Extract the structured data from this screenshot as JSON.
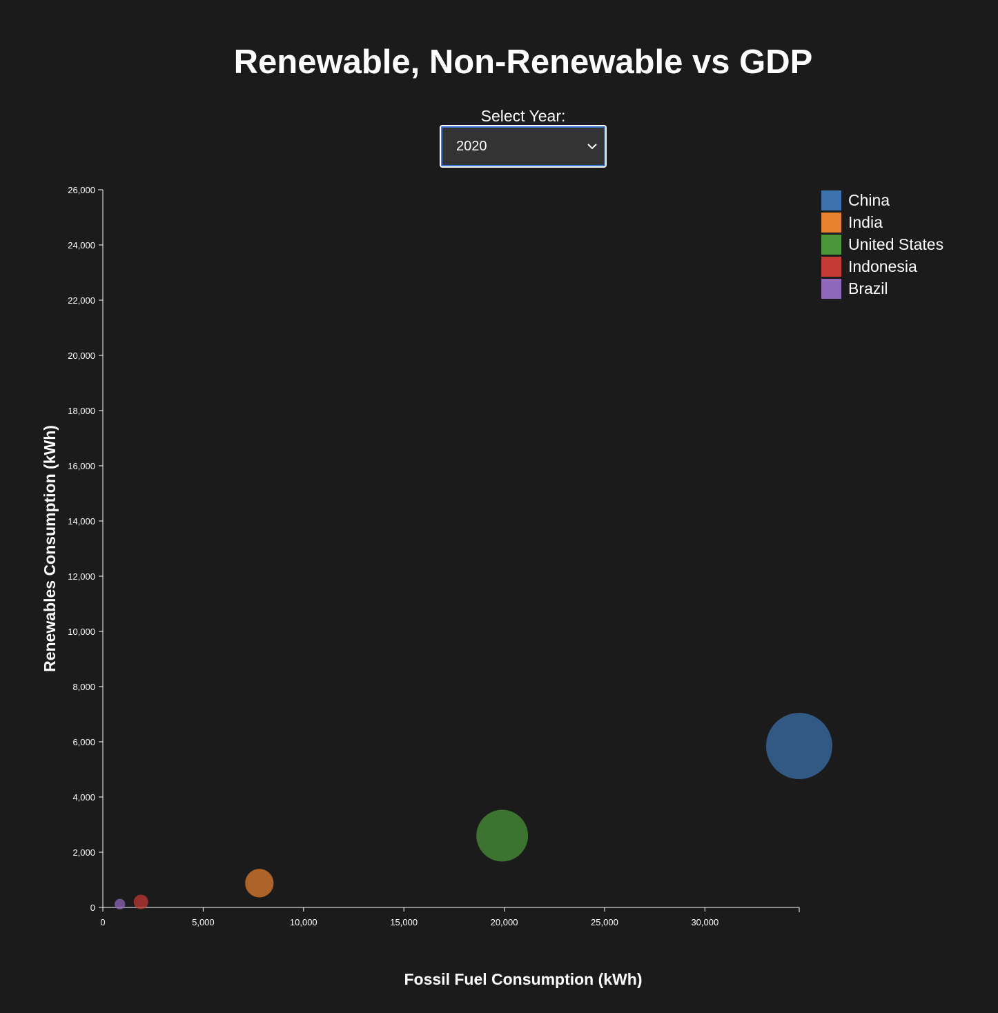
{
  "title": "Renewable, Non-Renewable vs GDP",
  "year_selector": {
    "label": "Select Year:",
    "selected": "2020",
    "icon": "chevron-down-icon"
  },
  "chart_data": {
    "type": "scatter",
    "title": "Renewable, Non-Renewable vs GDP",
    "xlabel": "Fossil Fuel Consumption (kWh)",
    "ylabel": "Renewables Consumption (kWh)",
    "xlim": [
      0,
      34700
    ],
    "ylim": [
      0,
      26000
    ],
    "x_ticks": [
      "0",
      "5,000",
      "10,000",
      "15,000",
      "20,000",
      "25,000",
      "30,000"
    ],
    "y_ticks": [
      "0",
      "2,000",
      "4,000",
      "6,000",
      "8,000",
      "10,000",
      "12,000",
      "14,000",
      "16,000",
      "18,000",
      "20,000",
      "22,000",
      "24,000",
      "26,000"
    ],
    "grid": false,
    "legend_position": "top-right",
    "series": [
      {
        "name": "China",
        "color": "#3c72ad",
        "x": 34700,
        "y": 5850,
        "size": 1.0
      },
      {
        "name": "India",
        "color": "#e8812e",
        "x": 7800,
        "y": 880,
        "size": 0.43
      },
      {
        "name": "United States",
        "color": "#4b9639",
        "x": 19900,
        "y": 2600,
        "size": 0.78
      },
      {
        "name": "Indonesia",
        "color": "#c53a34",
        "x": 1900,
        "y": 200,
        "size": 0.22
      },
      {
        "name": "Brazil",
        "color": "#9068bb",
        "x": 850,
        "y": 120,
        "size": 0.16
      }
    ]
  }
}
